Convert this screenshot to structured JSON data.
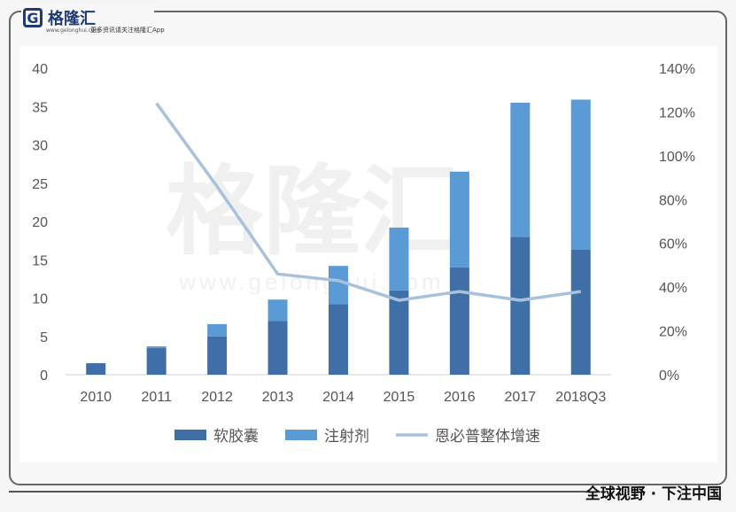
{
  "brand": {
    "name": "格隆汇",
    "url": "www.gelonghui.com",
    "slogan": "更多资讯请关注格隆汇App",
    "watermark_text": "格隆汇",
    "watermark_url": "www.gelonghui.com"
  },
  "footer": {
    "tagline": "全球视野 · 下注中国"
  },
  "chart_data": {
    "type": "bar",
    "stacked": true,
    "categories": [
      "2010",
      "2011",
      "2012",
      "2013",
      "2014",
      "2015",
      "2016",
      "2017",
      "2018Q3"
    ],
    "series": [
      {
        "name": "软胶囊",
        "type": "bar",
        "axis": "left",
        "color": "#3f6fa6",
        "values": [
          1.5,
          3.5,
          5.0,
          7.0,
          9.2,
          11.0,
          14.0,
          18.0,
          16.3
        ]
      },
      {
        "name": "注射剂",
        "type": "bar",
        "axis": "left",
        "color": "#5a9bd5",
        "values": [
          0.0,
          0.2,
          1.6,
          2.8,
          5.0,
          8.2,
          12.5,
          17.5,
          19.6
        ]
      },
      {
        "name": "恩必普整体增速",
        "type": "line",
        "axis": "right",
        "color": "#a9c2dc",
        "values": [
          null,
          124,
          86,
          46,
          43,
          34,
          38,
          34,
          38
        ]
      }
    ],
    "y_left": {
      "min": 0,
      "max": 40,
      "ticks": [
        "0",
        "5",
        "10",
        "15",
        "20",
        "25",
        "30",
        "35",
        "40"
      ]
    },
    "y_right": {
      "min": 0,
      "max": 140,
      "ticks": [
        "0%",
        "20%",
        "40%",
        "60%",
        "80%",
        "100%",
        "120%",
        "140%"
      ]
    },
    "grid": false,
    "legend": "bottom"
  }
}
